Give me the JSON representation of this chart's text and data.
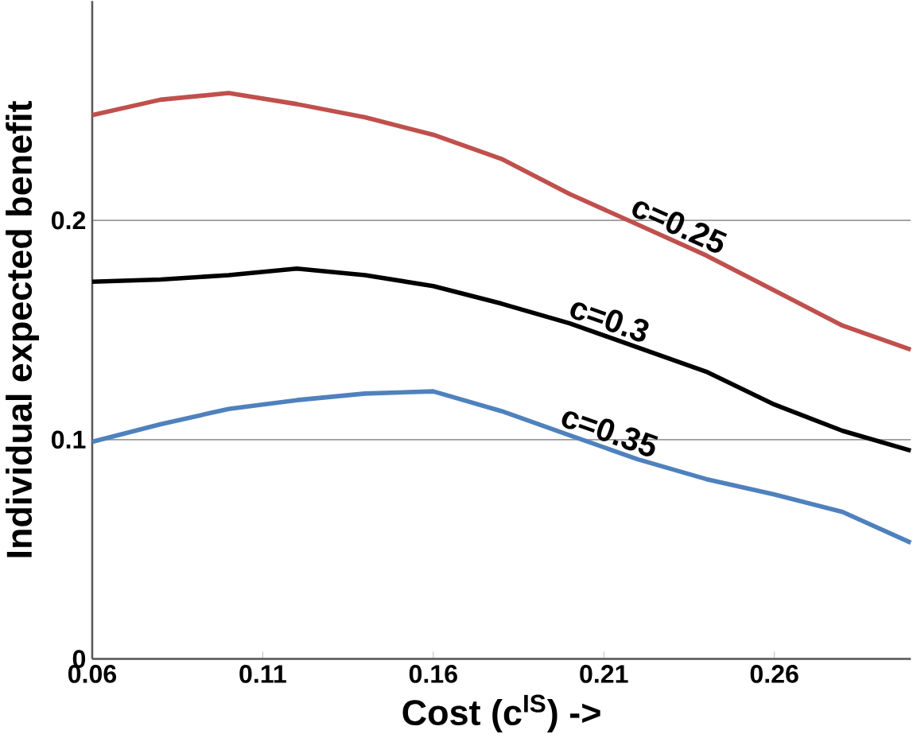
{
  "chart_data": {
    "type": "line",
    "xlabel": "Cost (c$^{IS}$) ->",
    "ylabel": "Individual expected benefit",
    "x": [
      0.06,
      0.08,
      0.1,
      0.12,
      0.14,
      0.16,
      0.18,
      0.2,
      0.22,
      0.24,
      0.26,
      0.28,
      0.3
    ],
    "series": [
      {
        "name": "c=0.25",
        "color": "#c0504d",
        "values": [
          0.248,
          0.255,
          0.258,
          0.253,
          0.247,
          0.239,
          0.228,
          0.212,
          0.198,
          0.184,
          0.168,
          0.152,
          0.141
        ]
      },
      {
        "name": "c=0.3",
        "color": "#000000",
        "values": [
          0.172,
          0.173,
          0.175,
          0.178,
          0.175,
          0.17,
          0.162,
          0.153,
          0.142,
          0.131,
          0.116,
          0.104,
          0.095
        ]
      },
      {
        "name": "c=0.35",
        "color": "#4f81bd",
        "values": [
          0.099,
          0.107,
          0.114,
          0.118,
          0.121,
          0.122,
          0.113,
          0.102,
          0.091,
          0.082,
          0.075,
          0.067,
          0.053
        ]
      }
    ],
    "xlim": [
      0.06,
      0.3
    ],
    "ylim": [
      0,
      0.3
    ],
    "xticks": [
      0.06,
      0.11,
      0.16,
      0.21,
      0.26
    ],
    "yticks": [
      0,
      0.1,
      0.2
    ],
    "grid": "y",
    "legend": false,
    "marker": "none",
    "line_style": "solid"
  }
}
